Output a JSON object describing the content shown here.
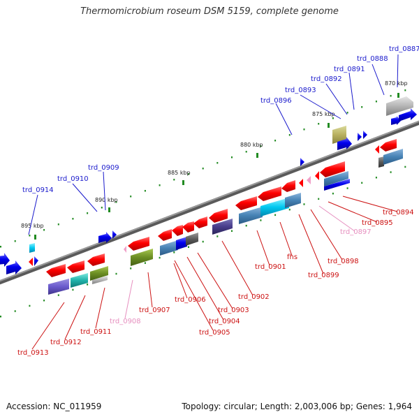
{
  "title": "Thermomicrobium roseum DSM 5159, complete genome",
  "footer": {
    "accession": "Accession: NC_011959",
    "topology": "Topology: circular; Length: 2,003,006 bp; Genes: 1,964"
  },
  "colors": {
    "forward_label": "#1a1acc",
    "reverse_label": "#cc1111",
    "pseudo_label": "#e68fbf",
    "backbone": "#808080"
  },
  "ticks": [
    {
      "label": "895 kbp"
    },
    {
      "label": "890 kbp"
    },
    {
      "label": "885 kbp"
    },
    {
      "label": "880 kbp"
    },
    {
      "label": "875 kbp"
    },
    {
      "label": "870 kbp"
    }
  ],
  "genes": [
    {
      "label": "trd_0887",
      "strand": "forward"
    },
    {
      "label": "trd_0888",
      "strand": "forward"
    },
    {
      "label": "trd_0891",
      "strand": "forward"
    },
    {
      "label": "trd_0892",
      "strand": "forward"
    },
    {
      "label": "trd_0893",
      "strand": "forward"
    },
    {
      "label": "trd_0896",
      "strand": "forward"
    },
    {
      "label": "trd_0909",
      "strand": "forward"
    },
    {
      "label": "trd_0910",
      "strand": "forward"
    },
    {
      "label": "trd_0914",
      "strand": "forward"
    },
    {
      "label": "trd_0894",
      "strand": "reverse"
    },
    {
      "label": "trd_0895",
      "strand": "reverse"
    },
    {
      "label": "trd_0897",
      "strand": "pseudo"
    },
    {
      "label": "trd_0898",
      "strand": "reverse"
    },
    {
      "label": "trd_0899",
      "strand": "reverse"
    },
    {
      "label": "fhs",
      "strand": "reverse"
    },
    {
      "label": "trd_0901",
      "strand": "reverse"
    },
    {
      "label": "trd_0902",
      "strand": "reverse"
    },
    {
      "label": "trd_0903",
      "strand": "reverse"
    },
    {
      "label": "trd_0904",
      "strand": "reverse"
    },
    {
      "label": "trd_0905",
      "strand": "reverse"
    },
    {
      "label": "trd_0906",
      "strand": "reverse"
    },
    {
      "label": "trd_0907",
      "strand": "reverse"
    },
    {
      "label": "trd_0908",
      "strand": "pseudo"
    },
    {
      "label": "trd_0911",
      "strand": "reverse"
    },
    {
      "label": "trd_0912",
      "strand": "reverse"
    },
    {
      "label": "trd_0913",
      "strand": "reverse"
    }
  ]
}
